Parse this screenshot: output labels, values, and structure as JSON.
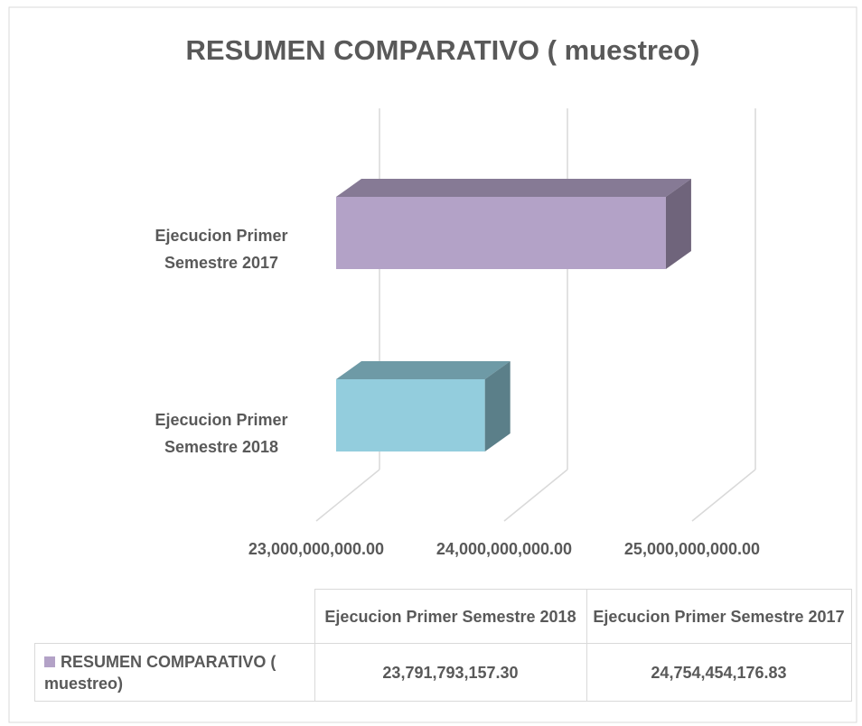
{
  "chart_data": {
    "type": "bar3d_horizontal",
    "title": "RESUMEN COMPARATIVO ( muestreo)",
    "categories": [
      "Ejecucion Primer Semestre 2018",
      "Ejecucion  Primer Semestre 2017"
    ],
    "series": [
      {
        "name": "RESUMEN COMPARATIVO ( muestreo)",
        "color": "#b3a2c7",
        "point_colors": [
          "#93cddd",
          "#b3a2c7"
        ],
        "values": [
          23791793157.3,
          24754454176.83
        ],
        "value_labels": [
          "23,791,793,157.30",
          "24,754,454,176.83"
        ]
      }
    ],
    "xlim": [
      23000000000,
      25000000000
    ],
    "xticks": [
      {
        "value": 23000000000,
        "label": "23,000,000,000.00"
      },
      {
        "value": 24000000000,
        "label": "24,000,000,000.00"
      },
      {
        "value": 25000000000,
        "label": "25,000,000,000.00"
      }
    ],
    "grid": true,
    "data_table": true
  }
}
